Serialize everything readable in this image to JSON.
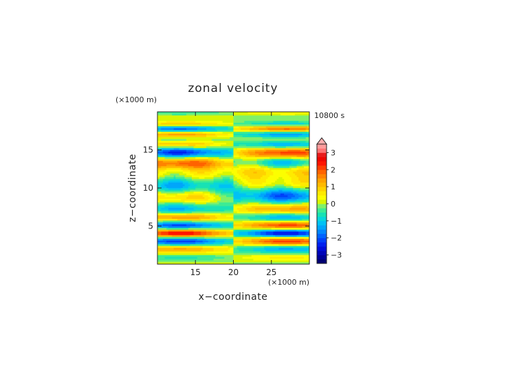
{
  "chart_data": {
    "type": "heatmap",
    "title": "zonal velocity",
    "time_label": "10800 s",
    "xlabel": "x−coordinate",
    "ylabel": "z−coordinate",
    "x_unit": "(×1000 m)",
    "y_unit": "(×1000 m)",
    "xlim": [
      10,
      30
    ],
    "ylim": [
      0,
      20
    ],
    "x_ticks": [
      15,
      20,
      25
    ],
    "y_ticks": [
      5,
      10,
      15
    ],
    "x_tick_labels": [
      "15",
      "20",
      "25"
    ],
    "y_tick_labels": [
      "5",
      "10",
      "15"
    ],
    "colorbar": {
      "min": -3.5,
      "max": 3.5,
      "step": 0.25,
      "overflow_triangle": "top",
      "tick_values": [
        3,
        2,
        1,
        0,
        -1,
        -2,
        -3
      ],
      "tick_labels": [
        "3",
        "2",
        "1",
        "0",
        "−1",
        "−2",
        "−3"
      ],
      "anchor_colors": [
        {
          "v": -3.5,
          "c": "#000060"
        },
        {
          "v": -3.0,
          "c": "#0000a8"
        },
        {
          "v": -2.5,
          "c": "#0010e8"
        },
        {
          "v": -2.0,
          "c": "#0050ff"
        },
        {
          "v": -1.5,
          "c": "#0098ff"
        },
        {
          "v": -1.0,
          "c": "#00d0f0"
        },
        {
          "v": -0.5,
          "c": "#20e8a0"
        },
        {
          "v": -0.15,
          "c": "#70f080"
        },
        {
          "v": 0.0,
          "c": "#c8f000"
        },
        {
          "v": 0.4,
          "c": "#ffff00"
        },
        {
          "v": 0.9,
          "c": "#ffd000"
        },
        {
          "v": 1.4,
          "c": "#ffa000"
        },
        {
          "v": 1.9,
          "c": "#ff6000"
        },
        {
          "v": 2.4,
          "c": "#ff1000"
        },
        {
          "v": 2.8,
          "c": "#e00000"
        },
        {
          "v": 3.1,
          "c": "#ff7070"
        },
        {
          "v": 3.5,
          "c": "#ffb0b0"
        }
      ]
    }
  }
}
